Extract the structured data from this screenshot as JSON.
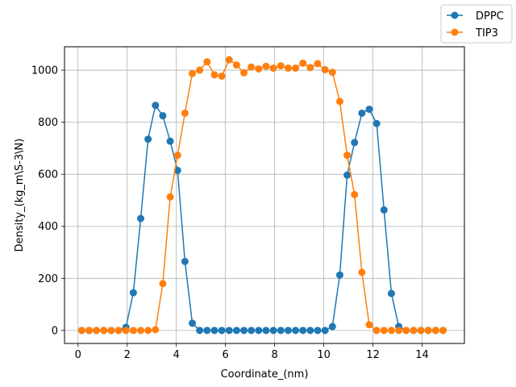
{
  "chart_data": {
    "type": "line",
    "title": "",
    "xlabel": "Coordinate_(nm)",
    "ylabel": "Density_(kg_m\\S-3\\N)",
    "xlim": [
      -0.55,
      15.72
    ],
    "ylim": [
      -50,
      1090
    ],
    "xticks": [
      0,
      2,
      4,
      6,
      8,
      10,
      12,
      14
    ],
    "yticks": [
      0,
      200,
      400,
      600,
      800,
      1000
    ],
    "grid": true,
    "legend_position": "top-right",
    "x": [
      0.15,
      0.45,
      0.75,
      1.05,
      1.35,
      1.65,
      1.95,
      2.25,
      2.55,
      2.85,
      3.15,
      3.45,
      3.75,
      4.05,
      4.35,
      4.65,
      4.95,
      5.25,
      5.55,
      5.85,
      6.15,
      6.45,
      6.75,
      7.05,
      7.35,
      7.65,
      7.95,
      8.25,
      8.55,
      8.85,
      9.15,
      9.45,
      9.75,
      10.05,
      10.35,
      10.65,
      10.95,
      11.25,
      11.55,
      11.85,
      12.15,
      12.45,
      12.75,
      13.05,
      13.35,
      13.65,
      13.95,
      14.25,
      14.55,
      14.85
    ],
    "series": [
      {
        "name": "DPPC",
        "color": "#1f77b4",
        "values": [
          0,
          0,
          0,
          0,
          0,
          0,
          12,
          145,
          430,
          735,
          865,
          825,
          727,
          615,
          265,
          28,
          0,
          0,
          0,
          0,
          0,
          0,
          0,
          0,
          0,
          0,
          0,
          0,
          0,
          0,
          0,
          0,
          0,
          0,
          15,
          213,
          597,
          722,
          835,
          850,
          795,
          463,
          142,
          15,
          0,
          0,
          0,
          0,
          0,
          0
        ]
      },
      {
        "name": "TIP3",
        "color": "#ff7f0e",
        "values": [
          0,
          0,
          0,
          0,
          0,
          0,
          0,
          0,
          0,
          0,
          3,
          180,
          513,
          673,
          835,
          987,
          1000,
          1032,
          982,
          977,
          1040,
          1020,
          990,
          1012,
          1005,
          1015,
          1008,
          1017,
          1008,
          1008,
          1027,
          1010,
          1025,
          1002,
          992,
          880,
          673,
          522,
          223,
          22,
          0,
          0,
          0,
          0,
          0,
          0,
          0,
          0,
          0,
          0
        ]
      }
    ]
  }
}
